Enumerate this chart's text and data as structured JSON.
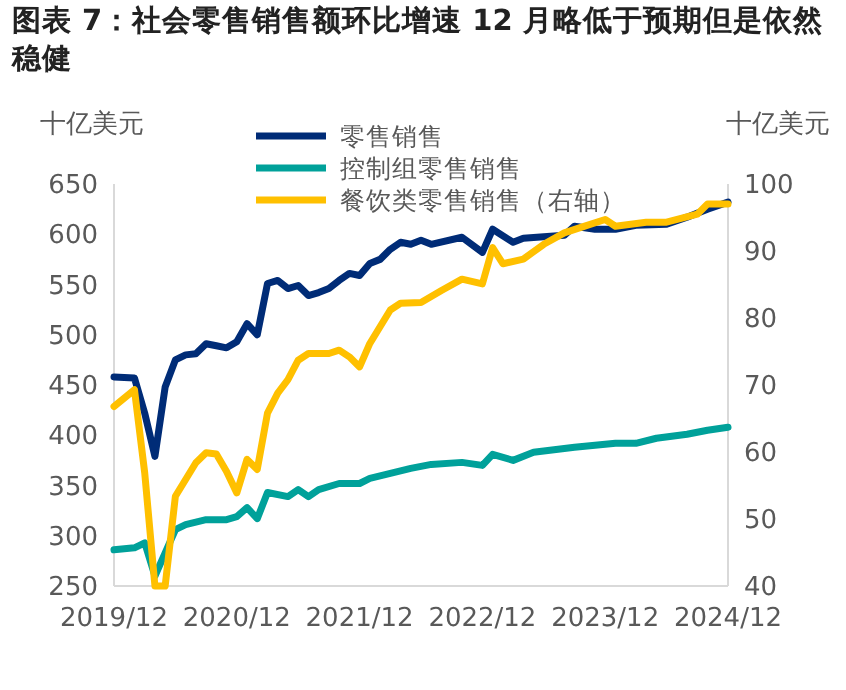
{
  "chart_data": {
    "type": "line",
    "title": "图表 7：社会零售销售额环比增速 12 月略低于预期但是依然稳健",
    "ylabel": "十亿美元",
    "y2label": "十亿美元",
    "legend": "top",
    "xlim": [
      "2019-12",
      "2024-12"
    ],
    "xticks": [
      {
        "value": "2019-12",
        "label": "2019/12"
      },
      {
        "value": "2020-12",
        "label": "2020/12"
      },
      {
        "value": "2021-12",
        "label": "2021/12"
      },
      {
        "value": "2022-12",
        "label": "2022/12"
      },
      {
        "value": "2023-12",
        "label": "2023/12"
      },
      {
        "value": "2024-12",
        "label": "2024/12"
      }
    ],
    "ylim": [
      250,
      650
    ],
    "yticks": [
      250,
      300,
      350,
      400,
      450,
      500,
      550,
      600,
      650
    ],
    "y2lim": [
      40,
      100
    ],
    "y2ticks": [
      40,
      50,
      60,
      70,
      80,
      90,
      100
    ],
    "series": [
      {
        "name": "零售销售",
        "color": "#002c77",
        "x": [
          "2019-12",
          "2020-02",
          "2020-03",
          "2020-04",
          "2020-05",
          "2020-06",
          "2020-07",
          "2020-08",
          "2020-09",
          "2020-10",
          "2020-11",
          "2020-12",
          "2021-01",
          "2021-02",
          "2021-03",
          "2021-04",
          "2021-05",
          "2021-06",
          "2021-07",
          "2021-08",
          "2021-09",
          "2021-10",
          "2021-11",
          "2021-12",
          "2022-01",
          "2022-02",
          "2022-03",
          "2022-04",
          "2022-05",
          "2022-06",
          "2022-07",
          "2022-10",
          "2022-12",
          "2023-01",
          "2023-03",
          "2023-04",
          "2023-08",
          "2023-09",
          "2023-11",
          "2024-01",
          "2024-03",
          "2024-06",
          "2024-08",
          "2024-10",
          "2024-12"
        ],
        "values": [
          458,
          457,
          422,
          379,
          448,
          475,
          480,
          481,
          491,
          489,
          487,
          493,
          511,
          500,
          551,
          554,
          546,
          549,
          539,
          542,
          546,
          554,
          561,
          559,
          571,
          575,
          585,
          592,
          590,
          594,
          590,
          597,
          582,
          605,
          592,
          596,
          599,
          608,
          605,
          605,
          609,
          610,
          617,
          625,
          632
        ]
      },
      {
        "name": "控制组零售销售",
        "color": "#00a19a",
        "x": [
          "2019-12",
          "2020-02",
          "2020-03",
          "2020-04",
          "2020-05",
          "2020-06",
          "2020-07",
          "2020-09",
          "2020-11",
          "2020-12",
          "2021-01",
          "2021-02",
          "2021-03",
          "2021-05",
          "2021-06",
          "2021-07",
          "2021-08",
          "2021-10",
          "2021-12",
          "2022-01",
          "2022-03",
          "2022-05",
          "2022-07",
          "2022-10",
          "2022-12",
          "2023-01",
          "2023-03",
          "2023-05",
          "2023-09",
          "2024-01",
          "2024-03",
          "2024-05",
          "2024-08",
          "2024-10",
          "2024-12"
        ],
        "values": [
          286,
          288,
          293,
          260,
          283,
          306,
          311,
          316,
          316,
          319,
          328,
          317,
          343,
          339,
          346,
          339,
          346,
          352,
          352,
          357,
          362,
          367,
          371,
          373,
          370,
          381,
          375,
          383,
          388,
          392,
          392,
          397,
          401,
          405,
          408
        ]
      },
      {
        "name": "餐饮类零售销售（右轴）",
        "color": "#ffc000",
        "axis": "y2",
        "x": [
          "2019-12",
          "2020-02",
          "2020-03",
          "2020-04",
          "2020-05",
          "2020-06",
          "2020-07",
          "2020-08",
          "2020-09",
          "2020-10",
          "2020-11",
          "2020-12",
          "2021-01",
          "2021-02",
          "2021-03",
          "2021-04",
          "2021-05",
          "2021-06",
          "2021-07",
          "2021-09",
          "2021-10",
          "2021-11",
          "2021-12",
          "2022-01",
          "2022-02",
          "2022-03",
          "2022-04",
          "2022-06",
          "2022-08",
          "2022-10",
          "2022-12",
          "2023-01",
          "2023-02",
          "2023-04",
          "2023-06",
          "2023-08",
          "2023-10",
          "2023-12",
          "2024-01",
          "2024-04",
          "2024-06",
          "2024-09",
          "2024-10",
          "2024-12"
        ],
        "values": [
          66.8,
          69.3,
          56.9,
          40,
          40,
          53.4,
          55.9,
          58.4,
          59.9,
          59.7,
          57.1,
          53.9,
          58.9,
          57.4,
          65.8,
          68.8,
          70.8,
          73.7,
          74.7,
          74.7,
          75.2,
          74.2,
          72.7,
          76.2,
          78.7,
          81.2,
          82.2,
          82.3,
          84.1,
          85.8,
          85.1,
          90.5,
          88.1,
          88.8,
          91.0,
          92.7,
          93.7,
          94.7,
          93.7,
          94.3,
          94.3,
          95.5,
          97,
          97
        ]
      }
    ]
  }
}
